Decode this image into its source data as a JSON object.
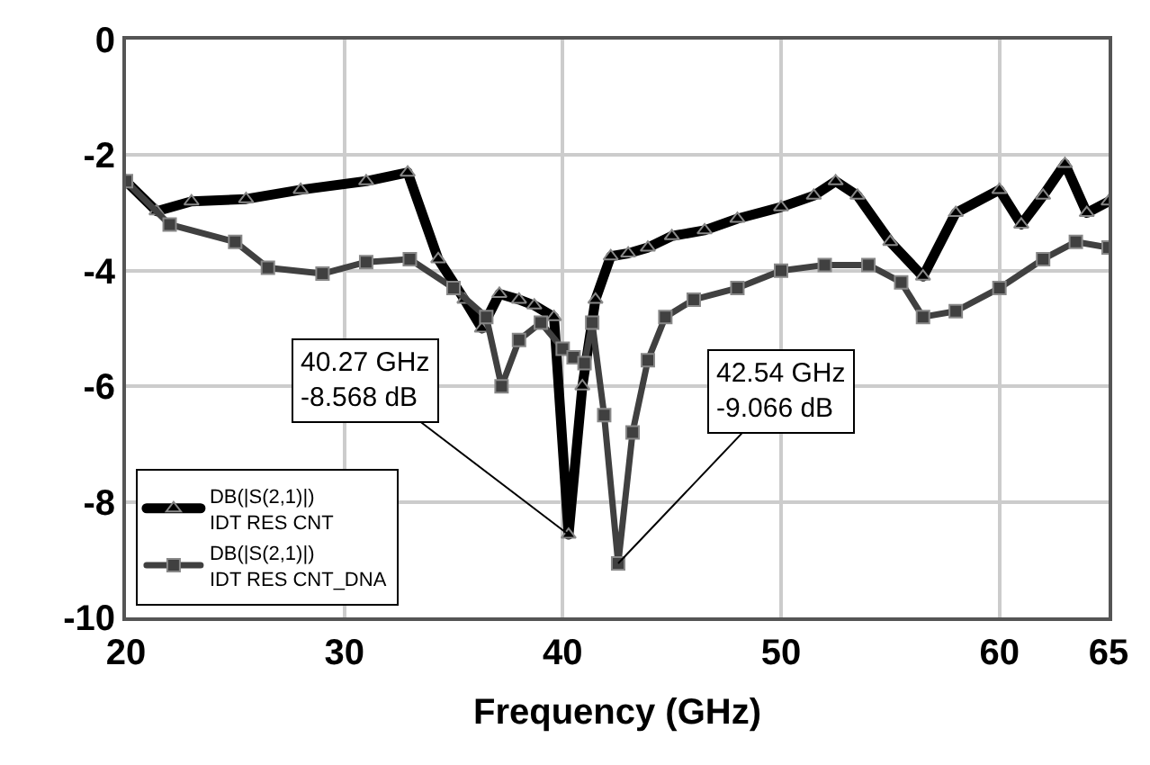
{
  "chart_data": {
    "type": "line",
    "xlabel": "Frequency (GHz)",
    "xlim": [
      20,
      65
    ],
    "xticks": [
      20,
      30,
      40,
      50,
      60,
      65
    ],
    "ylim": [
      -10,
      0
    ],
    "yticks": [
      0,
      -2,
      -4,
      -6,
      -8,
      -10
    ],
    "grid": true,
    "legend": "bottom left",
    "line_style": "solid",
    "series": [
      {
        "name": "DB(|S(2,1)|)\nIDT RES CNT",
        "color": "#000000",
        "marker": "triangle",
        "x": [
          20,
          21.4,
          23,
          25.5,
          28,
          31,
          32.9,
          34.3,
          35.5,
          36.3,
          37.1,
          38,
          38.7,
          39.6,
          40.27,
          40.9,
          41.5,
          42.2,
          43,
          43.9,
          45,
          46.5,
          48,
          50,
          51.5,
          52.5,
          53.5,
          55,
          56.5,
          58,
          60,
          61,
          62,
          63,
          64,
          65
        ],
        "values": [
          -2.45,
          -2.97,
          -2.8,
          -2.76,
          -2.6,
          -2.45,
          -2.3,
          -3.8,
          -4.5,
          -5.0,
          -4.4,
          -4.5,
          -4.6,
          -4.8,
          -8.568,
          -6.0,
          -4.5,
          -3.75,
          -3.7,
          -3.6,
          -3.4,
          -3.3,
          -3.1,
          -2.9,
          -2.7,
          -2.45,
          -2.7,
          -3.5,
          -4.1,
          -3.0,
          -2.6,
          -3.2,
          -2.7,
          -2.15,
          -3.0,
          -2.8
        ]
      },
      {
        "name": "DB(|S(2,1)|)\nIDT RES CNT_DNA",
        "color": "#404040",
        "marker": "square",
        "x": [
          20,
          22,
          25,
          26.5,
          29,
          31,
          33,
          35,
          36.5,
          37.2,
          38,
          39,
          40,
          40.5,
          41,
          41.35,
          41.9,
          42.54,
          43.2,
          43.9,
          44.7,
          46,
          48,
          50,
          52,
          54,
          55.5,
          56.5,
          58,
          60,
          62,
          63.5,
          65
        ],
        "values": [
          -2.45,
          -3.2,
          -3.5,
          -3.95,
          -4.05,
          -3.85,
          -3.8,
          -4.3,
          -4.8,
          -6.0,
          -5.2,
          -4.9,
          -5.35,
          -5.5,
          -5.6,
          -4.9,
          -6.5,
          -9.066,
          -6.8,
          -5.55,
          -4.8,
          -4.5,
          -4.3,
          -4.0,
          -3.9,
          -3.9,
          -4.2,
          -4.8,
          -4.7,
          -4.3,
          -3.8,
          -3.5,
          -3.6
        ]
      }
    ],
    "annotations": [
      {
        "text": "40.27 GHz\n-8.568 dB",
        "x": 40.27,
        "y": -8.568
      },
      {
        "text": "42.54 GHz\n-9.066 dB",
        "x": 42.54,
        "y": -9.066
      }
    ]
  }
}
